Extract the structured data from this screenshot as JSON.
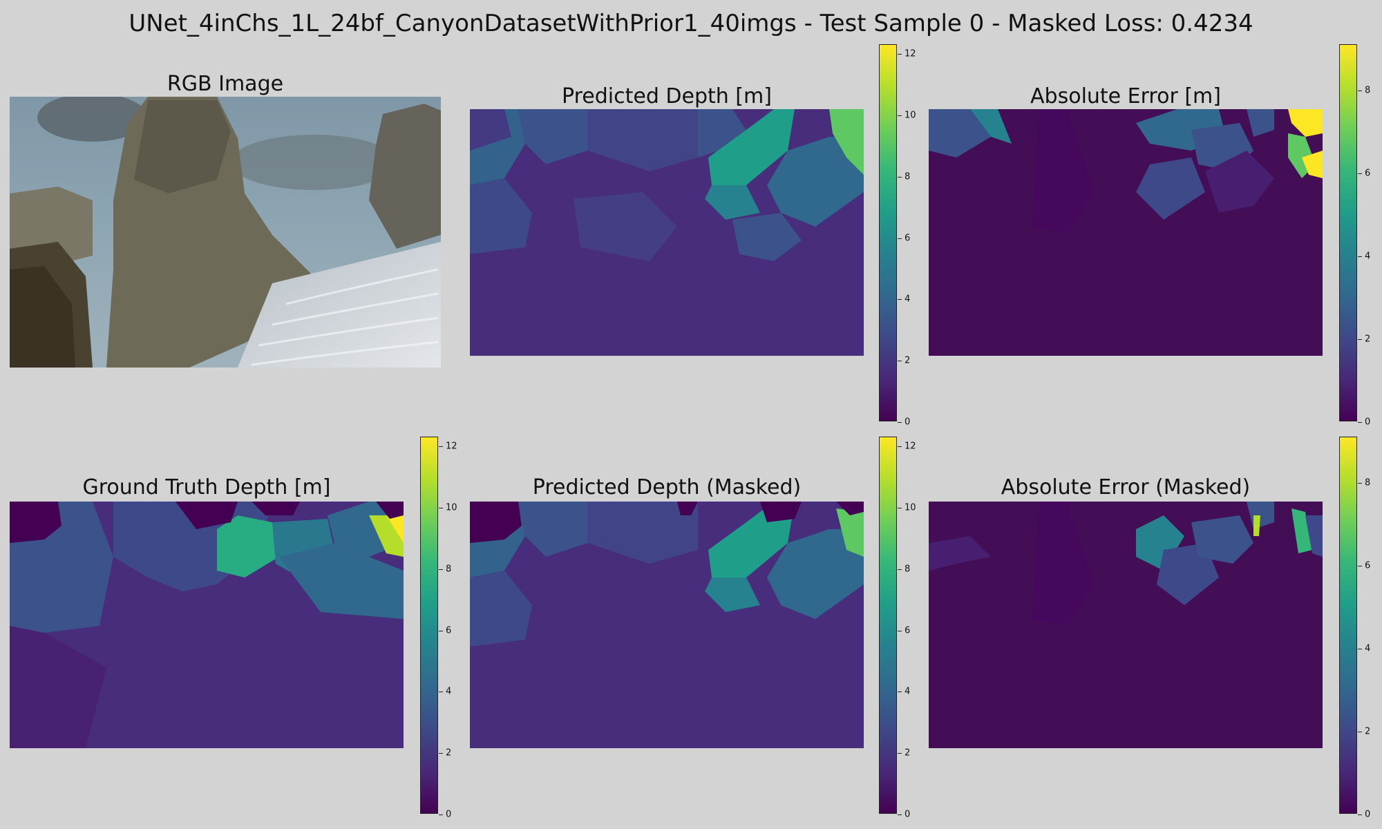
{
  "figure": {
    "title": "UNet_4inChs_1L_24bf_CanyonDatasetWithPrior1_40imgs - Test Sample 0 - Masked Loss: 0.4234"
  },
  "colormap": {
    "name": "viridis",
    "stops": [
      "#440154",
      "#482878",
      "#3e4989",
      "#31688e",
      "#26828e",
      "#1f9e89",
      "#35b779",
      "#6ece58",
      "#b5de2b",
      "#fde725"
    ]
  },
  "chart_data": [
    {
      "type": "heatmap",
      "title": "RGB Image"
    },
    {
      "type": "heatmap",
      "title": "Predicted Depth [m]",
      "colorbar": {
        "range": [
          0,
          12.3
        ],
        "ticks": [
          "0",
          "2",
          "4",
          "6",
          "8",
          "10",
          "12"
        ]
      }
    },
    {
      "type": "heatmap",
      "title": "Absolute Error [m]",
      "colorbar": {
        "range": [
          0,
          9.1
        ],
        "ticks": [
          "0",
          "2",
          "4",
          "6",
          "8"
        ]
      }
    },
    {
      "type": "heatmap",
      "title": "Ground Truth Depth [m]",
      "colorbar": {
        "range": [
          0,
          12.3
        ],
        "ticks": [
          "0",
          "2",
          "4",
          "6",
          "8",
          "10",
          "12"
        ]
      }
    },
    {
      "type": "heatmap",
      "title": "Predicted Depth (Masked)",
      "colorbar": {
        "range": [
          0,
          12.3
        ],
        "ticks": [
          "0",
          "2",
          "4",
          "6",
          "8",
          "10",
          "12"
        ]
      }
    },
    {
      "type": "heatmap",
      "title": "Absolute Error (Masked)",
      "colorbar": {
        "range": [
          0,
          9.1
        ],
        "ticks": [
          "0",
          "2",
          "4",
          "6",
          "8"
        ]
      }
    }
  ]
}
